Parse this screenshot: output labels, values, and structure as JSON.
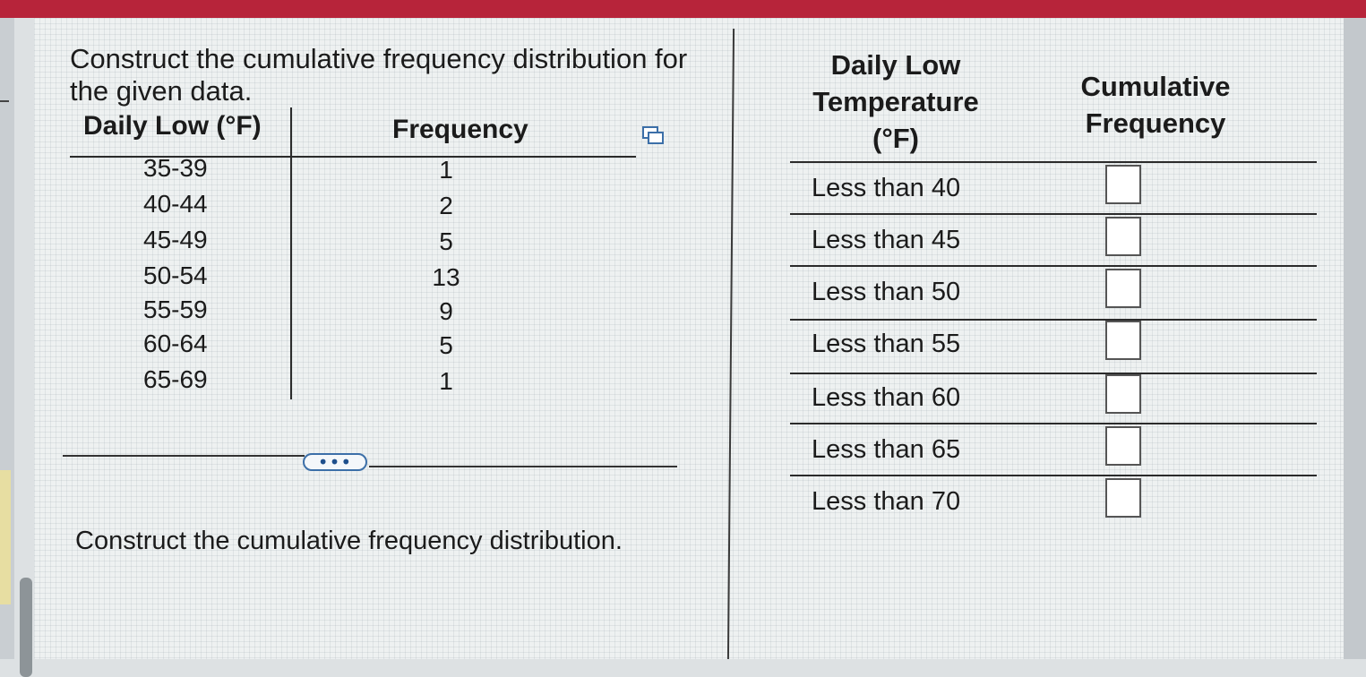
{
  "problem": {
    "prompt": "Construct the cumulative frequency distribution for the given data.",
    "instruction": "Construct the cumulative frequency distribution."
  },
  "data_table": {
    "headers": {
      "temperature": "Daily Low (°F)",
      "frequency": "Frequency"
    },
    "rows": [
      {
        "range": "35-39",
        "frequency": "1"
      },
      {
        "range": "40-44",
        "frequency": "2"
      },
      {
        "range": "45-49",
        "frequency": "5"
      },
      {
        "range": "50-54",
        "frequency": "13"
      },
      {
        "range": "55-59",
        "frequency": "9"
      },
      {
        "range": "60-64",
        "frequency": "5"
      },
      {
        "range": "65-69",
        "frequency": "1"
      }
    ]
  },
  "answer_table": {
    "headers": {
      "temperature": "Daily Low Temperature (°F)",
      "cumulative": "Cumulative Frequency"
    },
    "rows": [
      {
        "label": "Less than 40",
        "value": ""
      },
      {
        "label": "Less than 45",
        "value": ""
      },
      {
        "label": "Less than 50",
        "value": ""
      },
      {
        "label": "Less than 55",
        "value": ""
      },
      {
        "label": "Less than 60",
        "value": ""
      },
      {
        "label": "Less than 65",
        "value": ""
      },
      {
        "label": "Less than 70",
        "value": ""
      }
    ]
  },
  "more_button": {
    "label": "•••"
  },
  "icons": {
    "copy": "copy-icon"
  },
  "colors": {
    "top_bar": "#b7243a",
    "accent": "#3c6fa8"
  }
}
